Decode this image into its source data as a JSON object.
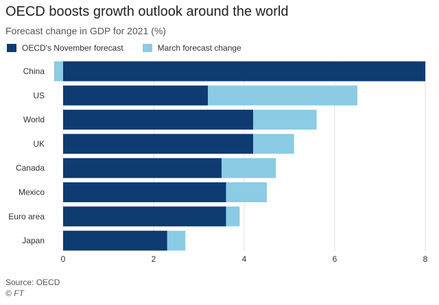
{
  "chart_data": {
    "type": "bar",
    "orientation": "horizontal",
    "stacked": true,
    "title": "OECD boosts growth outlook around the world",
    "subtitle": "Forecast change in GDP for 2021 (%)",
    "categories": [
      "China",
      "US",
      "World",
      "UK",
      "Canada",
      "Mexico",
      "Euro area",
      "Japan"
    ],
    "series": [
      {
        "name": "OECD's November forecast",
        "color": "#0d3b72",
        "values": [
          8.0,
          3.2,
          4.2,
          4.2,
          3.5,
          3.6,
          3.6,
          2.3
        ]
      },
      {
        "name": "March forecast change",
        "color": "#8bcbe3",
        "values": [
          -0.2,
          3.3,
          1.4,
          0.9,
          1.2,
          0.9,
          0.3,
          0.4
        ]
      }
    ],
    "xlim": [
      0,
      8
    ],
    "xticks": [
      0,
      2,
      4,
      6,
      8
    ],
    "xtick_labels": [
      "0",
      "2",
      "4",
      "6",
      "8"
    ],
    "xlabel": "",
    "ylabel": "",
    "grid": true,
    "legend_position": "top-left"
  },
  "footer": {
    "source": "Source: OECD",
    "credit": "© FT"
  }
}
